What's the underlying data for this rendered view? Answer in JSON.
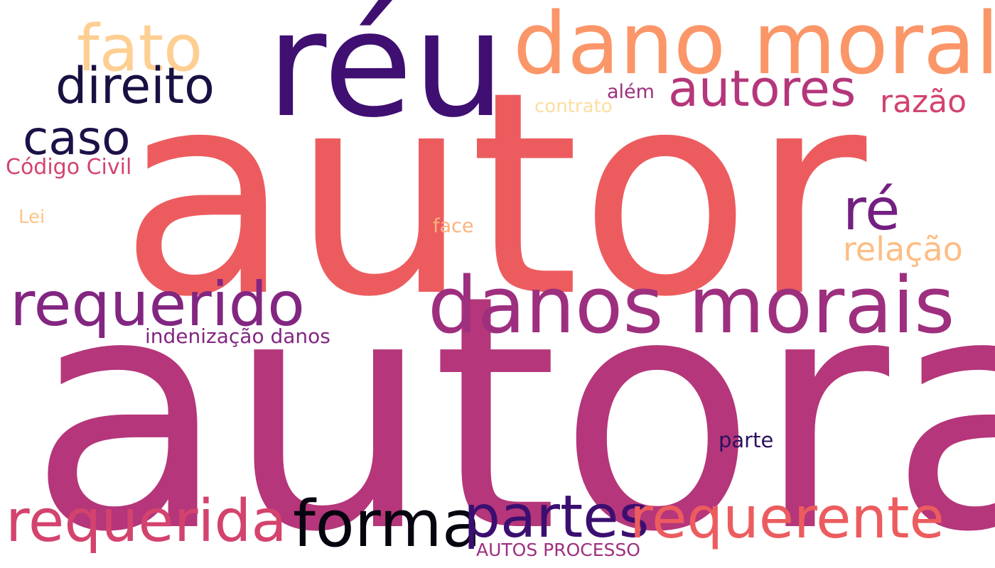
{
  "words": [
    {
      "text": "autor",
      "color": "#ec5c5f"
    },
    {
      "text": "autora",
      "color": "#b5367a"
    },
    {
      "text": "réu",
      "color": "#3f0f72"
    },
    {
      "text": "dano moral",
      "color": "#fb9668"
    },
    {
      "text": "danos morais",
      "color": "#9e2f7f"
    },
    {
      "text": "requerido",
      "color": "#822681"
    },
    {
      "text": "fato",
      "color": "#fecf92"
    },
    {
      "text": "direito",
      "color": "#1b1042"
    },
    {
      "text": "autores",
      "color": "#b5367a"
    },
    {
      "text": "caso",
      "color": "#1d1147"
    },
    {
      "text": "ré",
      "color": "#731f81"
    },
    {
      "text": "requerida",
      "color": "#d3436e"
    },
    {
      "text": "forma",
      "color": "#05040f"
    },
    {
      "text": "partes",
      "color": "#3b0f70"
    },
    {
      "text": "requerente",
      "color": "#ec5c5f"
    },
    {
      "text": "relação",
      "color": "#fdbd84"
    },
    {
      "text": "razão",
      "color": "#d3436e"
    },
    {
      "text": "Código Civil",
      "color": "#d3436e"
    },
    {
      "text": "indenização danos",
      "color": "#822681"
    },
    {
      "text": "além",
      "color": "#9e2f7f"
    },
    {
      "text": "contrato",
      "color": "#fddea0"
    },
    {
      "text": "face",
      "color": "#fdb27d"
    },
    {
      "text": "Lei",
      "color": "#fcc48c"
    },
    {
      "text": "parte",
      "color": "#2c115f"
    },
    {
      "text": "AUTOS PROCESSO",
      "color": "#9e2f7f"
    }
  ]
}
